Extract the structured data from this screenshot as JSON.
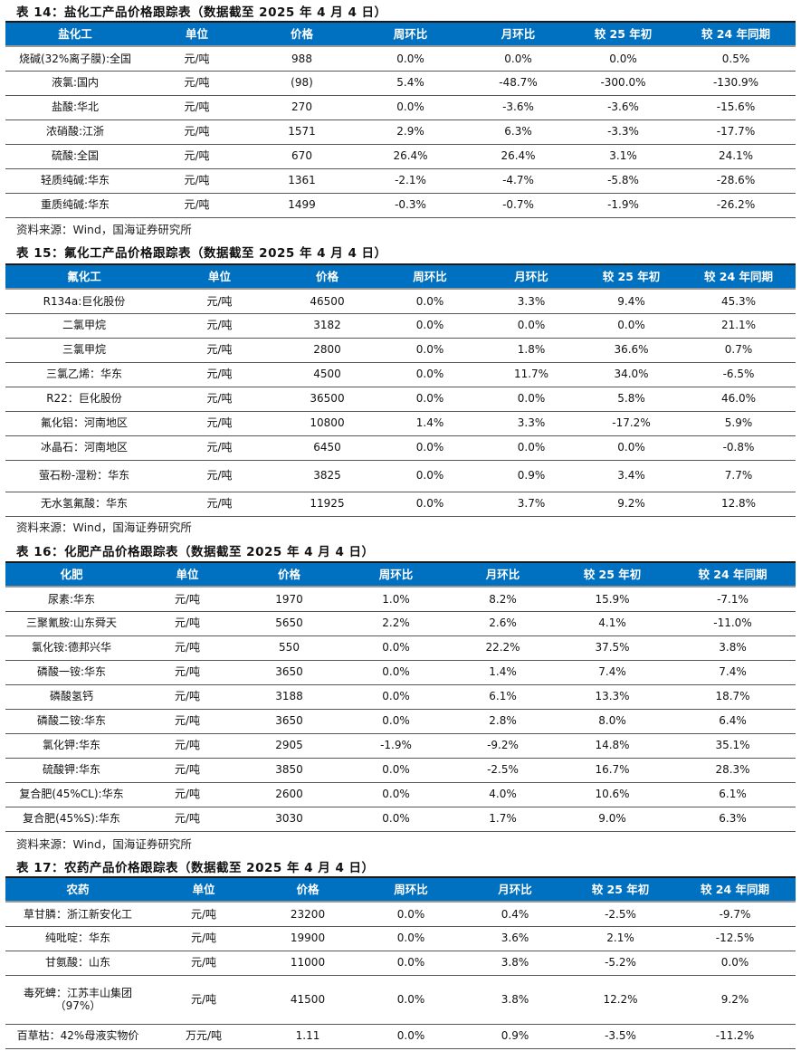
{
  "source_text": "资料来源：Wind，国海证券研究所",
  "tables": [
    {
      "title": "表 14：盐化工产品价格跟踪表（数据截至 2025 年 4 月 4 日）",
      "headers": [
        "盐化工",
        "单位",
        "价格",
        "周环比",
        "月环比",
        "较 25 年初",
        "较 24 年同期"
      ],
      "rows": [
        [
          "烧碱(32%离子膜):全国",
          "元/吨",
          "988",
          "0.0%",
          "0.0%",
          "0.0%",
          "0.5%"
        ],
        [
          "液氯:国内",
          "元/吨",
          "(98)",
          "5.4%",
          "-48.7%",
          "-300.0%",
          "-130.9%"
        ],
        [
          "盐酸:华北",
          "元/吨",
          "270",
          "0.0%",
          "-3.6%",
          "-3.6%",
          "-15.6%"
        ],
        [
          "浓硝酸:江浙",
          "元/吨",
          "1571",
          "2.9%",
          "6.3%",
          "-3.3%",
          "-17.7%"
        ],
        [
          "硫酸:全国",
          "元/吨",
          "670",
          "26.4%",
          "26.4%",
          "3.1%",
          "24.1%"
        ],
        [
          "轻质纯碱:华东",
          "元/吨",
          "1361",
          "-2.1%",
          "-4.7%",
          "-5.8%",
          "-28.6%"
        ],
        [
          "重质纯碱:华东",
          "元/吨",
          "1499",
          "-0.3%",
          "-0.7%",
          "-1.9%",
          "-26.2%"
        ]
      ]
    },
    {
      "title": "表 15：氟化工产品价格跟踪表（数据截至 2025 年 4 月 4 日）",
      "headers": [
        "氟化工",
        "单位",
        "价格",
        "周环比",
        "月环比",
        "较 25 年初",
        "较 24 年同期"
      ],
      "rows": [
        [
          "R134a:巨化股份",
          "元/吨",
          "46500",
          "0.0%",
          "3.3%",
          "9.4%",
          "45.3%"
        ],
        [
          "二氯甲烷",
          "元/吨",
          "3182",
          "0.0%",
          "0.0%",
          "0.0%",
          "21.1%"
        ],
        [
          "三氯甲烷",
          "元/吨",
          "2800",
          "0.0%",
          "1.8%",
          "36.6%",
          "0.7%"
        ],
        [
          "三氯乙烯：华东",
          "元/吨",
          "4500",
          "0.0%",
          "11.7%",
          "34.0%",
          "-6.5%"
        ],
        [
          "R22：巨化股份",
          "元/吨",
          "36500",
          "0.0%",
          "0.0%",
          "5.8%",
          "46.0%"
        ],
        [
          "氟化铝：河南地区",
          "元/吨",
          "10800",
          "1.4%",
          "3.3%",
          "-17.2%",
          "5.9%"
        ],
        [
          "冰晶石：河南地区",
          "元/吨",
          "6450",
          "0.0%",
          "0.0%",
          "0.0%",
          "-0.8%"
        ],
        [
          "萤石粉-湿粉：华东",
          "元/吨",
          "3825",
          "0.0%",
          "0.9%",
          "3.4%",
          "7.7%"
        ],
        [
          "无水氢氟酸：华东",
          "元/吨",
          "11925",
          "0.0%",
          "3.7%",
          "9.2%",
          "12.8%"
        ]
      ]
    },
    {
      "title": "表 16：化肥产品价格跟踪表（数据截至 2025 年 4 月 4 日）",
      "headers": [
        "化肥",
        "单位",
        "价格",
        "周环比",
        "月环比",
        "较 25 年初",
        "较 24 年同期"
      ],
      "rows": [
        [
          "尿素:华东",
          "元/吨",
          "1970",
          "1.0%",
          "8.2%",
          "15.9%",
          "-7.1%"
        ],
        [
          "三聚氰胺:山东舜天",
          "元/吨",
          "5650",
          "2.2%",
          "2.6%",
          "4.1%",
          "-11.0%"
        ],
        [
          "氯化铵:德邦兴华",
          "元/吨",
          "550",
          "0.0%",
          "22.2%",
          "37.5%",
          "3.8%"
        ],
        [
          "磷酸一铵:华东",
          "元/吨",
          "3650",
          "0.0%",
          "1.4%",
          "7.4%",
          "7.4%"
        ],
        [
          "磷酸氢钙",
          "元/吨",
          "3188",
          "0.0%",
          "6.1%",
          "13.3%",
          "18.7%"
        ],
        [
          "磷酸二铵:华东",
          "元/吨",
          "3650",
          "0.0%",
          "2.8%",
          "8.0%",
          "6.4%"
        ],
        [
          "氯化钾:华东",
          "元/吨",
          "2905",
          "-1.9%",
          "-9.2%",
          "14.8%",
          "35.1%"
        ],
        [
          "硫酸钾:华东",
          "元/吨",
          "3850",
          "0.0%",
          "-2.5%",
          "16.7%",
          "28.3%"
        ],
        [
          "复合肥(45%CL):华东",
          "元/吨",
          "2600",
          "0.0%",
          "4.0%",
          "10.6%",
          "6.1%"
        ],
        [
          "复合肥(45%S):华东",
          "元/吨",
          "3030",
          "0.0%",
          "1.7%",
          "9.0%",
          "6.3%"
        ]
      ]
    },
    {
      "title": "表 17：农药产品价格跟踪表（数据截至 2025 年 4 月 4 日）",
      "headers": [
        "农药",
        "单位",
        "价格",
        "周环比",
        "月环比",
        "较 25 年初",
        "较 24 年同期"
      ],
      "rows": [
        [
          "草甘膦：浙江新安化工",
          "元/吨",
          "23200",
          "0.0%",
          "0.4%",
          "-2.5%",
          "-9.7%"
        ],
        [
          "纯吡啶：华东",
          "元/吨",
          "19900",
          "0.0%",
          "3.6%",
          "2.1%",
          "-12.5%"
        ],
        [
          "甘氨酸：山东",
          "元/吨",
          "11000",
          "0.0%",
          "3.8%",
          "-5.2%",
          "0.0%"
        ],
        [
          "毒死蜱：江苏丰山集团（97%）",
          "元/吨",
          "41500",
          "0.0%",
          "3.8%",
          "12.2%",
          "9.2%"
        ],
        [
          "百草枯：42%母液实物价",
          "万元/吨",
          "1.11",
          "0.0%",
          "0.9%",
          "-3.5%",
          "-11.2%"
        ]
      ]
    }
  ]
}
